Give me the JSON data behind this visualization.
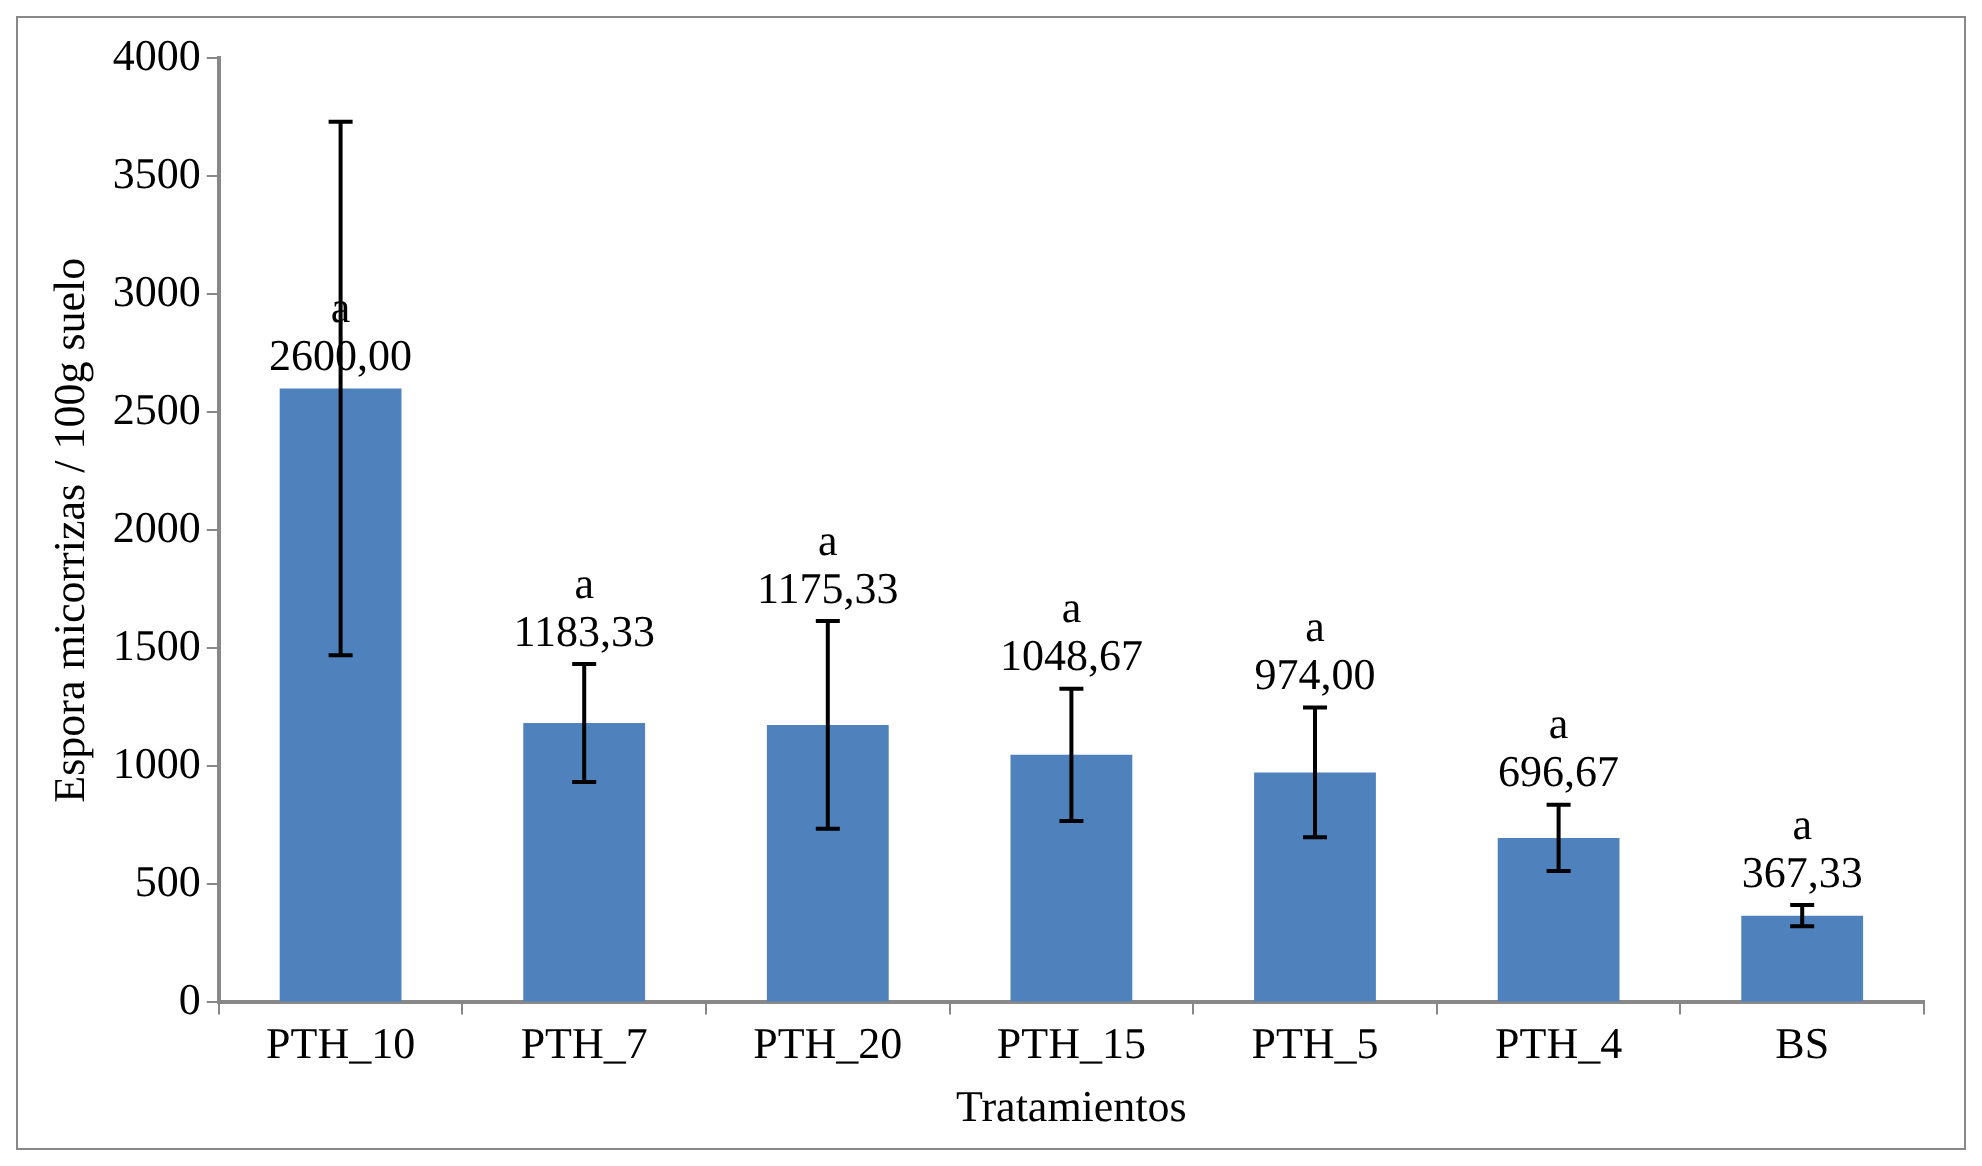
{
  "chart_data": {
    "type": "bar",
    "categories": [
      "PTH_10",
      "PTH_7",
      "PTH_20",
      "PTH_15",
      "PTH_5",
      "PTH_4",
      "BS"
    ],
    "values": [
      2600,
      1183.33,
      1175.33,
      1048.67,
      974,
      696.67,
      367.33
    ],
    "value_labels": [
      "2600,00",
      "1183,33",
      "1175,33",
      "1048,67",
      "974,00",
      "696,67",
      "367,33"
    ],
    "errors": [
      1130,
      250,
      440,
      280,
      275,
      140,
      45
    ],
    "color": "#4f81bd",
    "xlabel": "Tratamientos",
    "ylabel": "Espora micorrizas / 100g suelo",
    "ylim": [
      0,
      4000
    ],
    "yticks": [
      0,
      500,
      1000,
      1500,
      2000,
      2500,
      3000,
      3500,
      4000
    ],
    "annotations": [
      "a",
      "a",
      "a",
      "a",
      "a",
      "a",
      "a"
    ],
    "grid": false,
    "legend": false
  }
}
